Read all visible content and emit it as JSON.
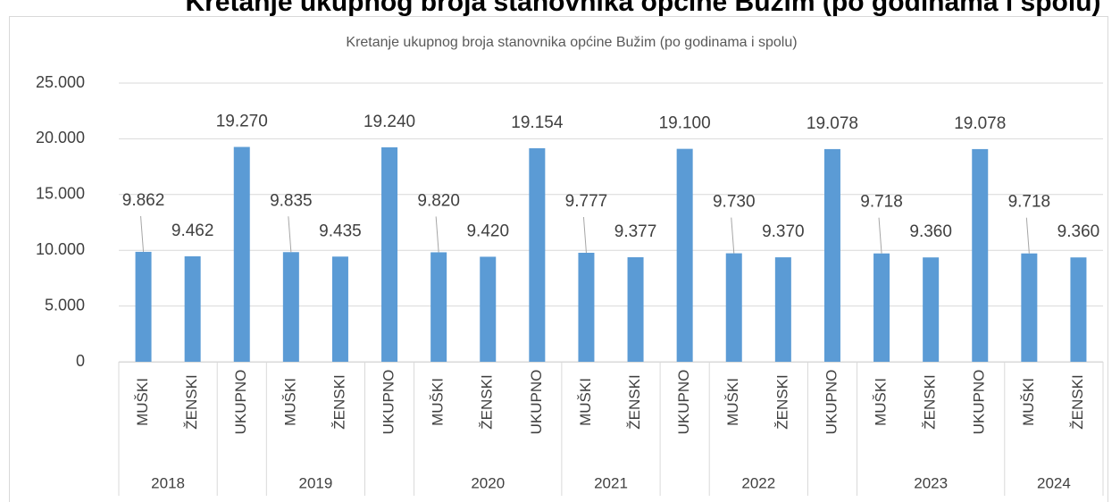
{
  "heading": "Kretanje ukupnog broja stanovnika općine Bužim (po godinama i spolu)",
  "chart_data": {
    "type": "bar",
    "title": "Kretanje ukupnog broja stanovnika općine Bužim (po godinama i spolu)",
    "categories": [
      "MUŠKI",
      "ŽENSKI",
      "UKUPNO",
      "MUŠKI",
      "ŽENSKI",
      "UKUPNO",
      "MUŠKI",
      "ŽENSKI",
      "UKUPNO",
      "MUŠKI",
      "ŽENSKI",
      "UKUPNO",
      "MUŠKI",
      "ŽENSKI",
      "UKUPNO",
      "MUŠKI",
      "ŽENSKI",
      "UKUPNO",
      "MUŠKI",
      "ŽENSKI"
    ],
    "category_groups": [
      "2018",
      "2018",
      null,
      "2019",
      "2019",
      null,
      "2020",
      "2020",
      "2020",
      "2021",
      "2021",
      null,
      "2022",
      "2022",
      null,
      "2023",
      "2023",
      "2023",
      "2024",
      "2024"
    ],
    "values": [
      9862,
      9462,
      19270,
      9835,
      9435,
      19240,
      9820,
      9420,
      19154,
      9777,
      9377,
      19100,
      9730,
      9370,
      19078,
      9718,
      9360,
      19078,
      9718,
      9360
    ],
    "value_labels": [
      "9.862",
      "9.462",
      "19.270",
      "9.835",
      "9.435",
      "19.240",
      "9.820",
      "9.420",
      "19.154",
      "9.777",
      "9.377",
      "19.100",
      "9.730",
      "9.370",
      "19.078",
      "9.718",
      "9.360",
      "19.078",
      "9.718",
      "9.360"
    ],
    "color": "#5b9bd5",
    "ylim": [
      0,
      25000
    ],
    "yticks": [
      0,
      {
        "value": 5000,
        "label": "5.000"
      },
      {
        "value": 10000,
        "label": "10.000"
      },
      {
        "value": 15000,
        "label": "15.000"
      },
      {
        "value": 20000,
        "label": "20.000"
      },
      {
        "value": 25000,
        "label": "25.000"
      }
    ],
    "grid": true
  }
}
